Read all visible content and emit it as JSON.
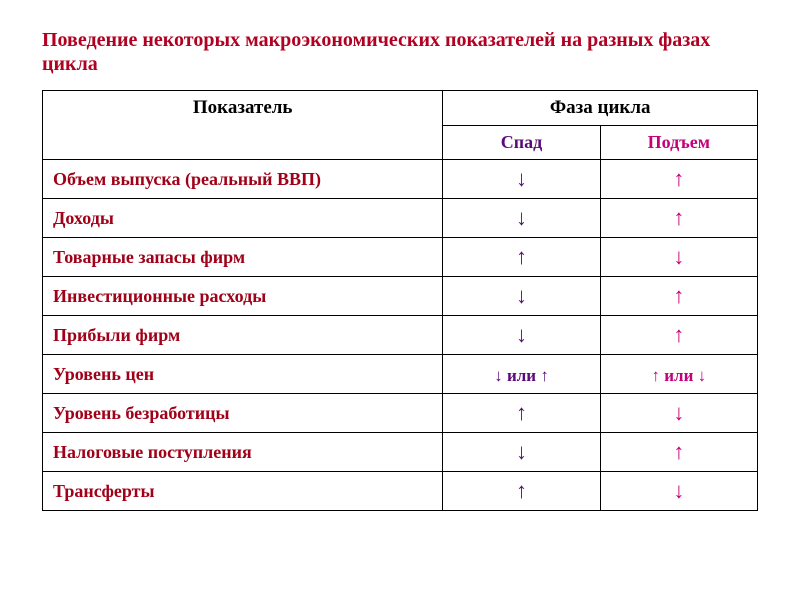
{
  "title": "Поведение некоторых макроэкономических показателей на разных фазах цикла",
  "colors": {
    "title": "#b10022",
    "indicator_text": "#a00018",
    "spad": "#5a0a7a",
    "pod": "#c4007a",
    "border": "#000000",
    "background": "#ffffff"
  },
  "typography": {
    "family": "Times New Roman",
    "title_fontsize_pt": 15,
    "header_fontsize_pt": 14,
    "body_fontsize_pt": 13,
    "arrow_fontsize_pt": 17
  },
  "table": {
    "type": "table",
    "header_indicator": "Показатель",
    "header_phase": "Фаза цикла",
    "sub_spad": "Спад",
    "sub_pod": "Подъем",
    "column_widths_pct": [
      56,
      22,
      22
    ],
    "rows": [
      {
        "indicator": "Объем выпуска (реальный ВВП)",
        "spad": "↓",
        "pod": "↑"
      },
      {
        "indicator": "Доходы",
        "spad": "↓",
        "pod": "↑"
      },
      {
        "indicator": "Товарные запасы фирм",
        "spad": "↑",
        "pod": "↓"
      },
      {
        "indicator": "Инвестиционные расходы",
        "spad": "↓",
        "pod": "↑"
      },
      {
        "indicator": "Прибыли фирм",
        "spad": "↓",
        "pod": "↑"
      },
      {
        "indicator": "Уровень цен",
        "spad": "↓ или ↑",
        "pod": "↑ или ↓"
      },
      {
        "indicator": "Уровень безработицы",
        "spad": "↑",
        "pod": "↓"
      },
      {
        "indicator": "Налоговые поступления",
        "spad": "↓",
        "pod": "↑"
      },
      {
        "indicator": "Трансферты",
        "spad": "↑",
        "pod": "↓"
      }
    ]
  }
}
